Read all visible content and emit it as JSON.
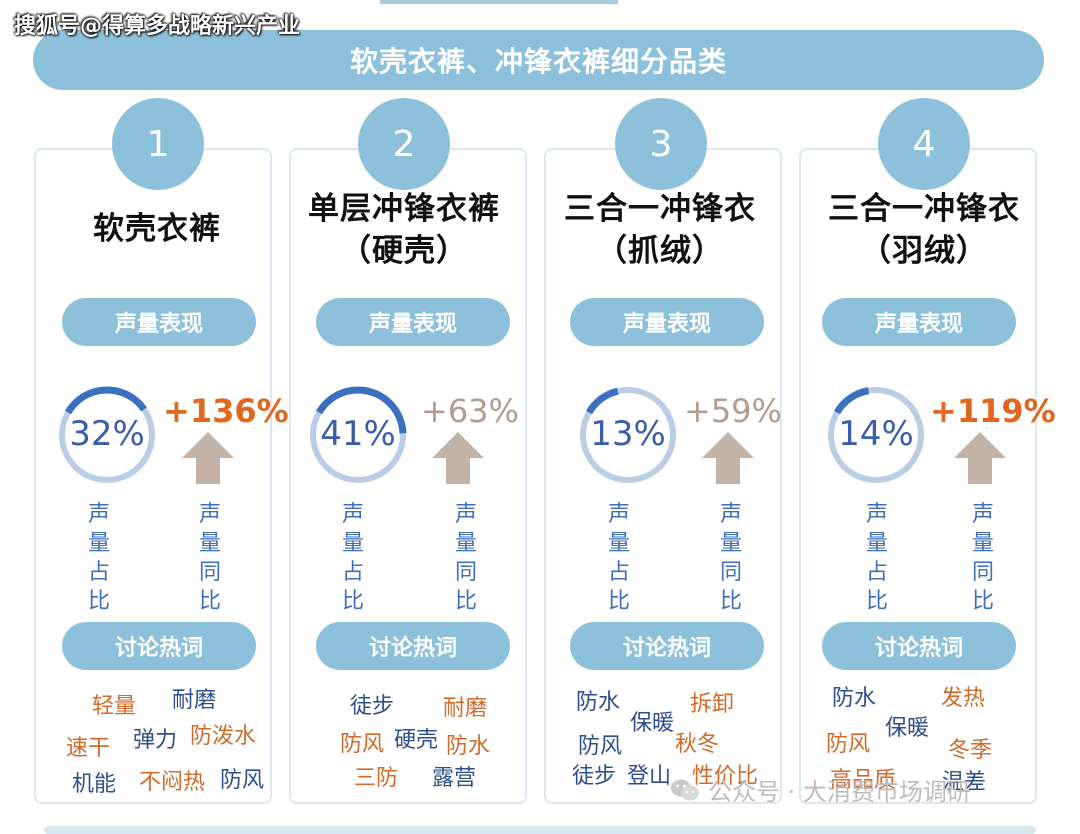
{
  "watermark": "搜狐号@得算多战略新兴产业",
  "banner_title": "软壳衣裤、冲锋衣裤细分品类",
  "colors": {
    "primary": "#8dc1db",
    "ring": "#3b6fbf",
    "ring_bg": "#b9cde6",
    "up": "#e0681e",
    "flat": "#b39c8f",
    "arrow": "#c3b2a6"
  },
  "cards": [
    {
      "number": "1",
      "title_line1": "软壳衣裤",
      "title_line2": "",
      "pill_volume": "声量表现",
      "share": "32%",
      "share_value": 32,
      "growth": "+136%",
      "growth_style": "up",
      "label_share": "声量占比",
      "label_growth": "声量同比",
      "pill_words": "讨论热词",
      "words": [
        {
          "text": "轻量",
          "c": "orange"
        },
        {
          "text": "耐磨",
          "c": "blue"
        },
        {
          "text": "速干",
          "c": "orange"
        },
        {
          "text": "弹力",
          "c": "blue"
        },
        {
          "text": "防泼水",
          "c": "orange"
        },
        {
          "text": "机能",
          "c": "blue"
        },
        {
          "text": "不闷热",
          "c": "orange"
        },
        {
          "text": "防风",
          "c": "blue"
        }
      ]
    },
    {
      "number": "2",
      "title_line1": "单层冲锋衣裤",
      "title_line2": "（硬壳）",
      "pill_volume": "声量表现",
      "share": "41%",
      "share_value": 41,
      "growth": "+63%",
      "growth_style": "flat",
      "label_share": "声量占比",
      "label_growth": "声量同比",
      "pill_words": "讨论热词",
      "words": [
        {
          "text": "徒步",
          "c": "blue"
        },
        {
          "text": "耐磨",
          "c": "orange"
        },
        {
          "text": "防风",
          "c": "orange"
        },
        {
          "text": "硬壳",
          "c": "blue"
        },
        {
          "text": "防水",
          "c": "orange"
        },
        {
          "text": "三防",
          "c": "orange"
        },
        {
          "text": "露营",
          "c": "blue"
        }
      ]
    },
    {
      "number": "3",
      "title_line1": "三合一冲锋衣",
      "title_line2": "（抓绒）",
      "pill_volume": "声量表现",
      "share": "13%",
      "share_value": 13,
      "growth": "+59%",
      "growth_style": "flat",
      "label_share": "声量占比",
      "label_growth": "声量同比",
      "pill_words": "讨论热词",
      "words": [
        {
          "text": "防水",
          "c": "blue"
        },
        {
          "text": "保暖",
          "c": "blue"
        },
        {
          "text": "拆卸",
          "c": "orange"
        },
        {
          "text": "防风",
          "c": "blue"
        },
        {
          "text": "秋冬",
          "c": "orange"
        },
        {
          "text": "徒步",
          "c": "blue"
        },
        {
          "text": "登山",
          "c": "blue"
        },
        {
          "text": "性价比",
          "c": "orange"
        }
      ]
    },
    {
      "number": "4",
      "title_line1": "三合一冲锋衣",
      "title_line2": "（羽绒）",
      "pill_volume": "声量表现",
      "share": "14%",
      "share_value": 14,
      "growth": "+119%",
      "growth_style": "up",
      "label_share": "声量占比",
      "label_growth": "声量同比",
      "pill_words": "讨论热词",
      "words": [
        {
          "text": "防水",
          "c": "blue"
        },
        {
          "text": "发热",
          "c": "orange"
        },
        {
          "text": "保暖",
          "c": "blue"
        },
        {
          "text": "防风",
          "c": "orange"
        },
        {
          "text": "冬季",
          "c": "orange"
        },
        {
          "text": "高品质",
          "c": "orange"
        },
        {
          "text": "温差",
          "c": "blue"
        }
      ]
    }
  ],
  "footer_watermark": "公众号 · 大消费市场调研"
}
